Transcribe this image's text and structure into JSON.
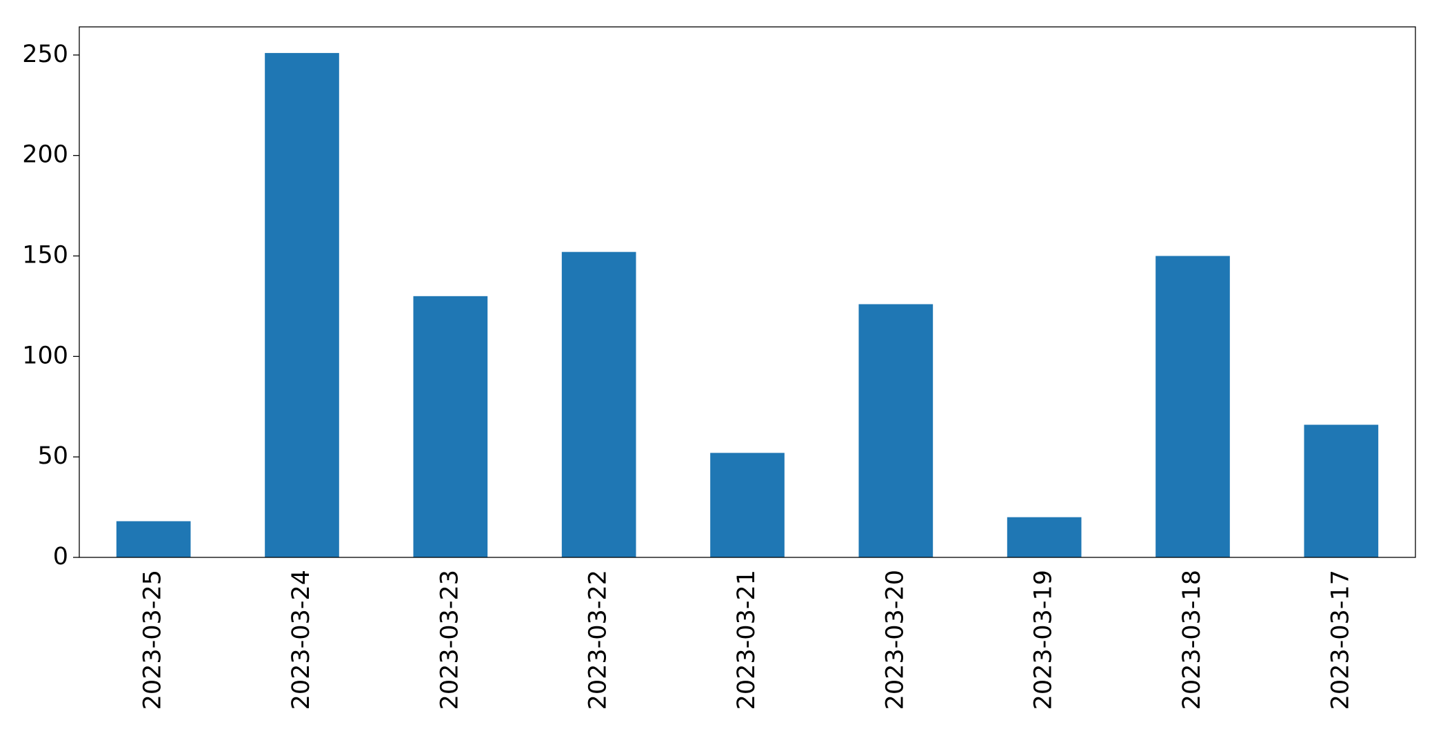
{
  "chart_data": {
    "type": "bar",
    "categories": [
      "2023-03-25",
      "2023-03-24",
      "2023-03-23",
      "2023-03-22",
      "2023-03-21",
      "2023-03-20",
      "2023-03-19",
      "2023-03-18",
      "2023-03-17"
    ],
    "values": [
      18,
      251,
      130,
      152,
      52,
      126,
      20,
      150,
      66
    ],
    "color": "#1f77b4",
    "ylim": [
      0,
      264
    ],
    "yticks": [
      0,
      50,
      100,
      150,
      200,
      250
    ],
    "grid": false
  }
}
